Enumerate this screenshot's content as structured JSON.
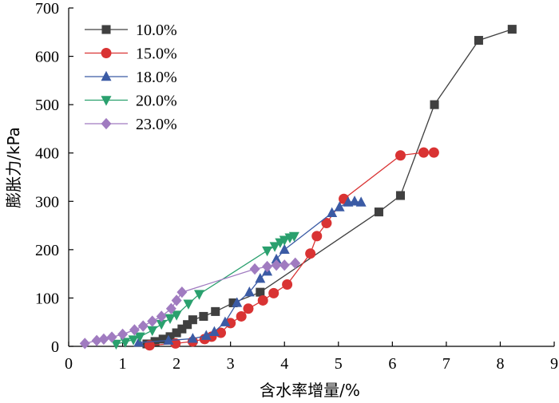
{
  "chart_data": {
    "type": "line",
    "title": "",
    "xlabel": "含水率增量/%",
    "ylabel": "膨胀力/kPa",
    "xlim": [
      0,
      9
    ],
    "ylim": [
      0,
      700
    ],
    "xticks": [
      0,
      1,
      2,
      3,
      4,
      5,
      6,
      7,
      8,
      9
    ],
    "yticks": [
      0,
      100,
      200,
      300,
      400,
      500,
      600,
      700
    ],
    "grid": false,
    "legend_position": "top-left",
    "series": [
      {
        "name": "10.0%",
        "color": "#404040",
        "marker": "square",
        "points": [
          [
            1.45,
            5
          ],
          [
            1.6,
            10
          ],
          [
            1.75,
            15
          ],
          [
            1.88,
            20
          ],
          [
            2.0,
            28
          ],
          [
            2.1,
            36
          ],
          [
            2.2,
            45
          ],
          [
            2.3,
            55
          ],
          [
            2.5,
            62
          ],
          [
            2.72,
            72
          ],
          [
            3.05,
            90
          ],
          [
            3.55,
            112
          ],
          [
            5.75,
            278
          ],
          [
            6.15,
            312
          ],
          [
            6.78,
            500
          ],
          [
            7.6,
            633
          ],
          [
            8.22,
            656
          ]
        ]
      },
      {
        "name": "15.0%",
        "color": "#d93333",
        "marker": "circle",
        "points": [
          [
            1.5,
            2
          ],
          [
            1.98,
            6
          ],
          [
            2.3,
            10
          ],
          [
            2.52,
            15
          ],
          [
            2.65,
            20
          ],
          [
            2.82,
            28
          ],
          [
            3.0,
            48
          ],
          [
            3.2,
            62
          ],
          [
            3.33,
            78
          ],
          [
            3.6,
            95
          ],
          [
            3.8,
            110
          ],
          [
            4.05,
            128
          ],
          [
            4.48,
            192
          ],
          [
            4.6,
            228
          ],
          [
            4.78,
            255
          ],
          [
            5.1,
            305
          ],
          [
            6.15,
            395
          ],
          [
            6.58,
            401
          ],
          [
            6.77,
            401
          ]
        ]
      },
      {
        "name": "18.0%",
        "color": "#3b5ba5",
        "marker": "triangle-up",
        "points": [
          [
            1.3,
            8
          ],
          [
            1.85,
            12
          ],
          [
            2.3,
            16
          ],
          [
            2.55,
            22
          ],
          [
            2.7,
            30
          ],
          [
            2.9,
            50
          ],
          [
            3.12,
            90
          ],
          [
            3.35,
            112
          ],
          [
            3.55,
            140
          ],
          [
            3.68,
            155
          ],
          [
            3.85,
            180
          ],
          [
            4.0,
            200
          ],
          [
            4.88,
            276
          ],
          [
            5.02,
            288
          ],
          [
            5.18,
            298
          ],
          [
            5.3,
            300
          ],
          [
            5.42,
            298
          ]
        ]
      },
      {
        "name": "20.0%",
        "color": "#2aa06e",
        "marker": "triangle-down",
        "points": [
          [
            0.88,
            5
          ],
          [
            1.05,
            9
          ],
          [
            1.2,
            14
          ],
          [
            1.32,
            20
          ],
          [
            1.55,
            33
          ],
          [
            1.72,
            46
          ],
          [
            1.88,
            58
          ],
          [
            2.0,
            65
          ],
          [
            2.22,
            88
          ],
          [
            2.42,
            108
          ],
          [
            3.68,
            198
          ],
          [
            3.82,
            207
          ],
          [
            3.92,
            215
          ],
          [
            4.0,
            220
          ],
          [
            4.1,
            225
          ],
          [
            4.18,
            228
          ]
        ]
      },
      {
        "name": "23.0%",
        "color": "#a07bc0",
        "marker": "diamond",
        "points": [
          [
            0.3,
            6
          ],
          [
            0.52,
            12
          ],
          [
            0.65,
            15
          ],
          [
            0.8,
            19
          ],
          [
            1.0,
            25
          ],
          [
            1.22,
            34
          ],
          [
            1.38,
            42
          ],
          [
            1.55,
            52
          ],
          [
            1.72,
            62
          ],
          [
            1.9,
            78
          ],
          [
            2.0,
            95
          ],
          [
            2.1,
            112
          ],
          [
            3.45,
            160
          ],
          [
            3.68,
            165
          ],
          [
            3.85,
            168
          ],
          [
            4.0,
            168
          ],
          [
            4.2,
            172
          ]
        ]
      }
    ]
  }
}
